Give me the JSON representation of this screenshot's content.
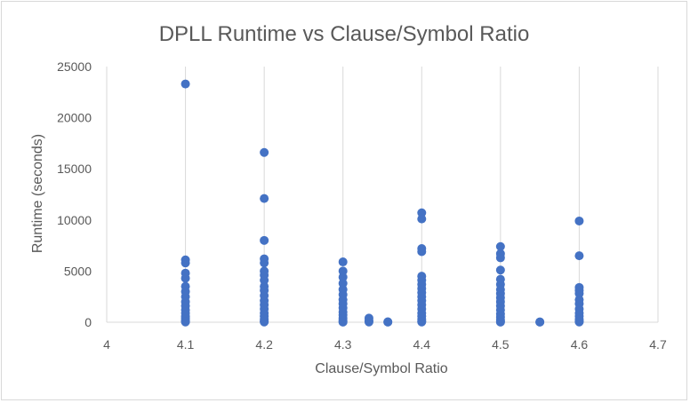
{
  "chart_data": {
    "type": "scatter",
    "title": "DPLL Runtime vs Clause/Symbol Ratio",
    "xlabel": "Clause/Symbol Ratio",
    "ylabel": "Runtime (seconds)",
    "xlim": [
      4,
      4.7
    ],
    "ylim": [
      0,
      25000
    ],
    "x_ticks": [
      "4",
      "4.1",
      "4.2",
      "4.3",
      "4.4",
      "4.5",
      "4.6",
      "4.7"
    ],
    "y_ticks": [
      "0",
      "5000",
      "10000",
      "15000",
      "20000",
      "25000"
    ],
    "grid": "vertical",
    "legend": "none",
    "marker_color": "#4472c4",
    "series": [
      {
        "points": [
          [
            4.1,
            23300
          ],
          [
            4.1,
            6100
          ],
          [
            4.1,
            5800
          ],
          [
            4.1,
            4800
          ],
          [
            4.1,
            4300
          ],
          [
            4.1,
            3500
          ],
          [
            4.1,
            3000
          ],
          [
            4.1,
            2500
          ],
          [
            4.1,
            2000
          ],
          [
            4.1,
            1600
          ],
          [
            4.1,
            1200
          ],
          [
            4.1,
            900
          ],
          [
            4.1,
            600
          ],
          [
            4.1,
            400
          ],
          [
            4.1,
            200
          ],
          [
            4.1,
            80
          ],
          [
            4.1,
            20
          ],
          [
            4.2,
            16600
          ],
          [
            4.2,
            12100
          ],
          [
            4.2,
            8000
          ],
          [
            4.2,
            6200
          ],
          [
            4.2,
            5800
          ],
          [
            4.2,
            5000
          ],
          [
            4.2,
            4600
          ],
          [
            4.2,
            4100
          ],
          [
            4.2,
            3500
          ],
          [
            4.2,
            3100
          ],
          [
            4.2,
            2600
          ],
          [
            4.2,
            2100
          ],
          [
            4.2,
            1700
          ],
          [
            4.2,
            1300
          ],
          [
            4.2,
            900
          ],
          [
            4.2,
            600
          ],
          [
            4.2,
            300
          ],
          [
            4.2,
            100
          ],
          [
            4.2,
            20
          ],
          [
            4.3,
            5900
          ],
          [
            4.3,
            5000
          ],
          [
            4.3,
            4400
          ],
          [
            4.3,
            3800
          ],
          [
            4.3,
            3200
          ],
          [
            4.3,
            2700
          ],
          [
            4.3,
            2200
          ],
          [
            4.3,
            1800
          ],
          [
            4.3,
            1400
          ],
          [
            4.3,
            1000
          ],
          [
            4.3,
            700
          ],
          [
            4.3,
            400
          ],
          [
            4.3,
            200
          ],
          [
            4.3,
            50
          ],
          [
            4.3,
            10
          ],
          [
            4.333,
            400
          ],
          [
            4.333,
            150
          ],
          [
            4.333,
            20
          ],
          [
            4.357,
            40
          ],
          [
            4.357,
            10
          ],
          [
            4.4,
            10700
          ],
          [
            4.4,
            10100
          ],
          [
            4.4,
            7200
          ],
          [
            4.4,
            6900
          ],
          [
            4.4,
            4500
          ],
          [
            4.4,
            4100
          ],
          [
            4.4,
            3700
          ],
          [
            4.4,
            3300
          ],
          [
            4.4,
            2900
          ],
          [
            4.4,
            2500
          ],
          [
            4.4,
            2100
          ],
          [
            4.4,
            1700
          ],
          [
            4.4,
            1300
          ],
          [
            4.4,
            900
          ],
          [
            4.4,
            600
          ],
          [
            4.4,
            300
          ],
          [
            4.4,
            100
          ],
          [
            4.4,
            20
          ],
          [
            4.5,
            7400
          ],
          [
            4.5,
            6700
          ],
          [
            4.5,
            6300
          ],
          [
            4.5,
            5100
          ],
          [
            4.5,
            4200
          ],
          [
            4.5,
            3700
          ],
          [
            4.5,
            3200
          ],
          [
            4.5,
            2800
          ],
          [
            4.5,
            2400
          ],
          [
            4.5,
            2000
          ],
          [
            4.5,
            1600
          ],
          [
            4.5,
            1200
          ],
          [
            4.5,
            800
          ],
          [
            4.5,
            500
          ],
          [
            4.5,
            250
          ],
          [
            4.5,
            60
          ],
          [
            4.5,
            10
          ],
          [
            4.55,
            30
          ],
          [
            4.55,
            10
          ],
          [
            4.6,
            9900
          ],
          [
            4.6,
            6500
          ],
          [
            4.6,
            3400
          ],
          [
            4.6,
            3100
          ],
          [
            4.6,
            2800
          ],
          [
            4.6,
            2200
          ],
          [
            4.6,
            1800
          ],
          [
            4.6,
            1300
          ],
          [
            4.6,
            900
          ],
          [
            4.6,
            600
          ],
          [
            4.6,
            300
          ],
          [
            4.6,
            100
          ],
          [
            4.6,
            20
          ]
        ]
      }
    ]
  }
}
